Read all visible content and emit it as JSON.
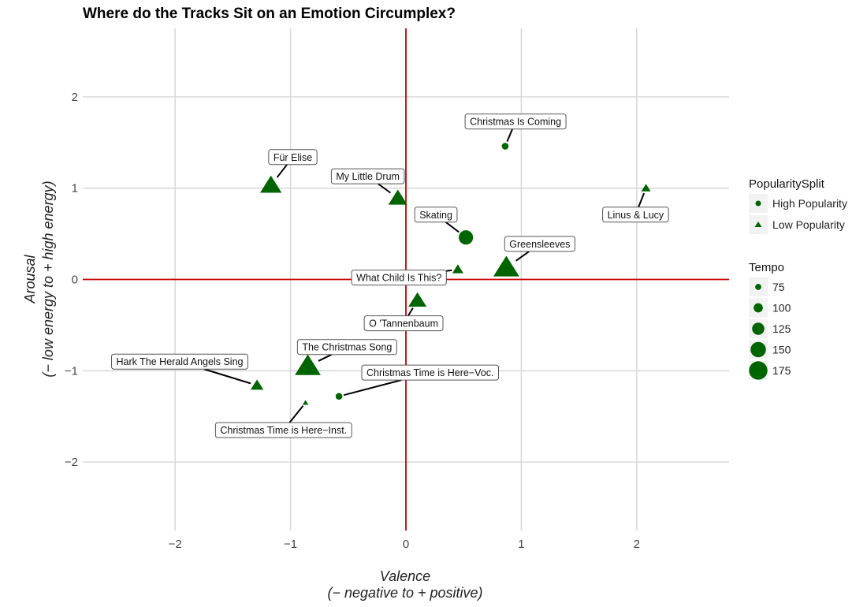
{
  "chart_data": {
    "type": "scatter",
    "title": "Where do the Tracks Sit on an Emotion Circumplex?",
    "xlabel": [
      "Valence",
      "(− negative to + positive)"
    ],
    "ylabel": [
      "Arousal",
      "(− low energy to + high energy)"
    ],
    "xlim": [
      -2.8,
      2.8
    ],
    "ylim": [
      -2.75,
      2.75
    ],
    "xticks": [
      -2,
      -1,
      0,
      1,
      2
    ],
    "xtick_labels": [
      "−2",
      "−1",
      "0",
      "1",
      "2"
    ],
    "yticks": [
      -2,
      -1,
      0,
      1,
      2
    ],
    "ytick_labels": [
      "−2",
      "−1",
      "0",
      "1",
      "2"
    ],
    "reference_lines": {
      "x": 0,
      "y": 0,
      "color": "#cc0000"
    },
    "point_color": "#006400",
    "points": [
      {
        "label": "Christmas Is Coming",
        "valence": 0.86,
        "arousal": 1.46,
        "group": "High Popularity",
        "tempo": 75,
        "label_at": [
          0.95,
          1.73
        ]
      },
      {
        "label": "Für Elise",
        "valence": -1.17,
        "arousal": 1.03,
        "group": "Low Popularity",
        "tempo": 150,
        "label_at": [
          -0.98,
          1.34
        ]
      },
      {
        "label": "My Little Drum",
        "valence": -0.07,
        "arousal": 0.89,
        "group": "Low Popularity",
        "tempo": 135,
        "label_at": [
          -0.33,
          1.13
        ]
      },
      {
        "label": "Linus & Lucy",
        "valence": 2.08,
        "arousal": 1.0,
        "group": "Low Popularity",
        "tempo": 80,
        "label_at": [
          1.99,
          0.71
        ]
      },
      {
        "label": "Skating",
        "valence": 0.52,
        "arousal": 0.46,
        "group": "High Popularity",
        "tempo": 130,
        "label_at": [
          0.26,
          0.71
        ]
      },
      {
        "label": "Greensleeves",
        "valence": 0.87,
        "arousal": 0.13,
        "group": "Low Popularity",
        "tempo": 175,
        "label_at": [
          1.16,
          0.39
        ]
      },
      {
        "label": "What Child Is This?",
        "valence": 0.45,
        "arousal": 0.11,
        "group": "Low Popularity",
        "tempo": 90,
        "label_at": [
          -0.06,
          0.02
        ]
      },
      {
        "label": "O 'Tannenbaum",
        "valence": 0.1,
        "arousal": -0.23,
        "group": "Low Popularity",
        "tempo": 130,
        "label_at": [
          -0.02,
          -0.48
        ]
      },
      {
        "label": "The Christmas Song",
        "valence": -0.85,
        "arousal": -0.95,
        "group": "Low Popularity",
        "tempo": 175,
        "label_at": [
          -0.51,
          -0.74
        ]
      },
      {
        "label": "Hark The Herald Angels Sing",
        "valence": -1.29,
        "arousal": -1.16,
        "group": "Low Popularity",
        "tempo": 100,
        "label_at": [
          -1.96,
          -0.9
        ]
      },
      {
        "label": "Christmas Time is Here−Voc.",
        "valence": -0.58,
        "arousal": -1.28,
        "group": "High Popularity",
        "tempo": 75,
        "label_at": [
          0.21,
          -1.02
        ]
      },
      {
        "label": "Christmas Time is Here−Inst.",
        "valence": -0.87,
        "arousal": -1.35,
        "group": "Low Popularity",
        "tempo": 60,
        "label_at": [
          -1.06,
          -1.65
        ]
      }
    ],
    "legend_position": "right",
    "legend": {
      "shape_title": "PopularitySplit",
      "shape_entries": [
        {
          "label": "High Popularity",
          "shape": "circle"
        },
        {
          "label": "Low Popularity",
          "shape": "triangle"
        }
      ],
      "size_title": "Tempo",
      "size_entries": [
        {
          "label": "75",
          "tempo": 75
        },
        {
          "label": "100",
          "tempo": 100
        },
        {
          "label": "125",
          "tempo": 125
        },
        {
          "label": "150",
          "tempo": 150
        },
        {
          "label": "175",
          "tempo": 175
        }
      ]
    }
  }
}
